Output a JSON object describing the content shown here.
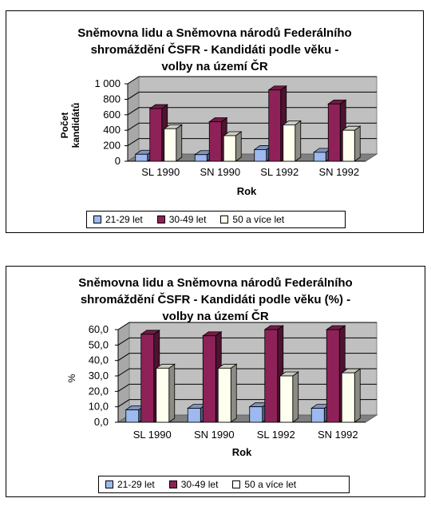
{
  "chart_data": [
    {
      "type": "bar",
      "title_lines": [
        "Sněmovna lidu a Sněmovna národů Federálního",
        "shromáždění ČSFR - Kandidáti podle věku -",
        "volby na území ČR"
      ],
      "xlabel": "Rok",
      "ylabel_lines": [
        "Počet",
        "kandidátů"
      ],
      "categories": [
        "SL 1990",
        "SN 1990",
        "SL 1992",
        "SN 1992"
      ],
      "ylim": [
        0,
        1000
      ],
      "yticks": [
        "0",
        "200",
        "400",
        "600",
        "800",
        "1 000"
      ],
      "series": [
        {
          "name": "21-29 let",
          "color": "#9db9ef",
          "values": [
            90,
            85,
            150,
            115
          ]
        },
        {
          "name": "30-49 let",
          "color": "#8e2258",
          "values": [
            680,
            510,
            920,
            740
          ]
        },
        {
          "name": "50 a více let",
          "color": "#fffff0",
          "values": [
            420,
            330,
            470,
            400
          ]
        }
      ],
      "grid": true,
      "legend_position": "bottom"
    },
    {
      "type": "bar",
      "title_lines": [
        "Sněmovna lidu a Sněmovna národů Federálního",
        "shromáždění ČSFR - Kandidáti podle věku (%) -",
        "volby na území ČR"
      ],
      "xlabel": "Rok",
      "ylabel_lines": [
        "%"
      ],
      "categories": [
        "SL 1990",
        "SN 1990",
        "SL 1992",
        "SN 1992"
      ],
      "ylim": [
        0,
        60
      ],
      "yticks": [
        "0,0",
        "10,0",
        "20,0",
        "30,0",
        "40,0",
        "50,0",
        "60,0"
      ],
      "series": [
        {
          "name": "21-29 let",
          "color": "#9db9ef",
          "values": [
            8,
            9,
            10,
            9
          ]
        },
        {
          "name": "30-49 let",
          "color": "#8e2258",
          "values": [
            57,
            56,
            60,
            60
          ]
        },
        {
          "name": "50 a více let",
          "color": "#fffff0",
          "values": [
            35,
            35,
            30,
            32
          ]
        }
      ],
      "grid": true,
      "legend_position": "bottom"
    }
  ]
}
